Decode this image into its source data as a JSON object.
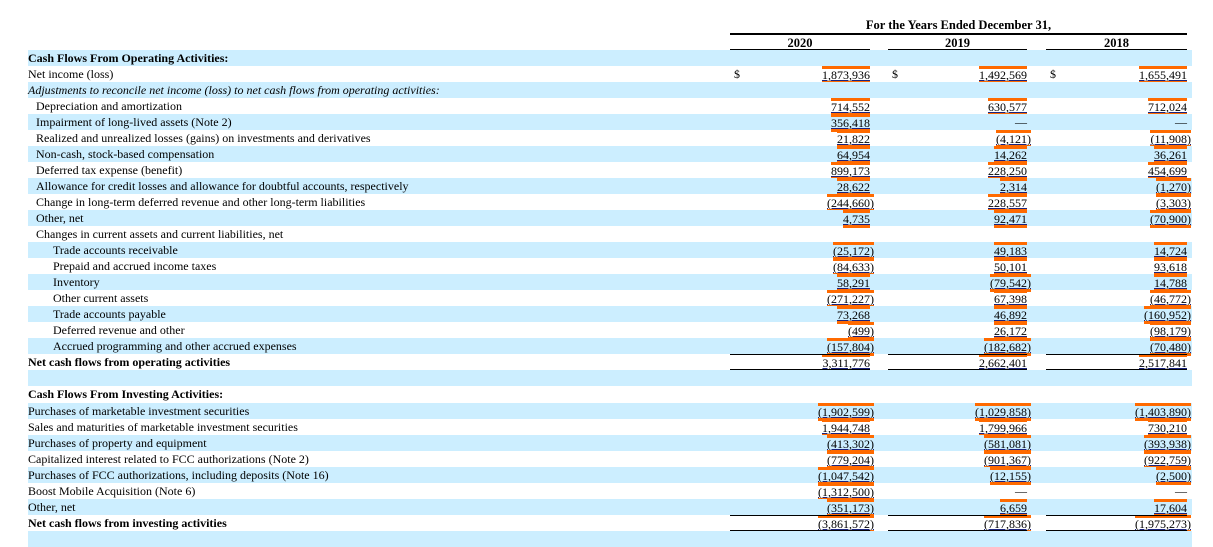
{
  "header": {
    "title": "For the Years Ended December 31,",
    "years": [
      "2020",
      "2019",
      "2018"
    ]
  },
  "colors": {
    "band": "#cceeff",
    "highlight": "#ff6a00"
  },
  "rows": [
    {
      "label": "Cash Flows From Operating Activities:",
      "style": "bold",
      "indent": 0,
      "values": null
    },
    {
      "label": "Net income (loss)",
      "style": "normal",
      "indent": 0,
      "dollar": "$",
      "values": [
        "1,873,936",
        "1,492,569",
        "1,655,491"
      ]
    },
    {
      "label": "Adjustments to reconcile net income (loss) to net cash flows from operating activities:",
      "style": "italic",
      "indent": 0,
      "values": null
    },
    {
      "label": "Depreciation and amortization",
      "style": "normal",
      "indent": 1,
      "values": [
        "714,552",
        "630,577",
        "712,024"
      ]
    },
    {
      "label": "Impairment of long-lived assets (Note 2)",
      "style": "normal",
      "indent": 1,
      "values": [
        "356,418",
        "—",
        "—"
      ]
    },
    {
      "label": "Realized and unrealized losses (gains) on investments and derivatives",
      "style": "normal",
      "indent": 1,
      "values": [
        "21,822",
        "(4,121)",
        "(11,908)"
      ]
    },
    {
      "label": "Non-cash, stock-based compensation",
      "style": "normal",
      "indent": 1,
      "values": [
        "64,954",
        "14,262",
        "36,261"
      ]
    },
    {
      "label": "Deferred tax expense (benefit)",
      "style": "normal",
      "indent": 1,
      "values": [
        "899,173",
        "228,250",
        "454,699"
      ]
    },
    {
      "label": "Allowance for credit losses and allowance for doubtful accounts, respectively",
      "style": "normal",
      "indent": 1,
      "values": [
        "28,622",
        "2,314",
        "(1,270)"
      ]
    },
    {
      "label": "Change in long-term deferred revenue and other long-term liabilities",
      "style": "normal",
      "indent": 1,
      "values": [
        "(244,660)",
        "228,557",
        "(3,303)"
      ]
    },
    {
      "label": "Other, net",
      "style": "normal",
      "indent": 1,
      "values": [
        "4,735",
        "92,471",
        "(70,900)"
      ]
    },
    {
      "label": "Changes in current assets and current liabilities, net",
      "style": "normal",
      "indent": 1,
      "values": null
    },
    {
      "label": "Trade accounts receivable",
      "style": "normal",
      "indent": 2,
      "values": [
        "(25,172)",
        "49,183",
        "14,724"
      ]
    },
    {
      "label": "Prepaid and accrued income taxes",
      "style": "normal",
      "indent": 2,
      "values": [
        "(84,633)",
        "50,101",
        "93,618"
      ]
    },
    {
      "label": "Inventory",
      "style": "normal",
      "indent": 2,
      "values": [
        "58,291",
        "(79,542)",
        "14,788"
      ]
    },
    {
      "label": "Other current assets",
      "style": "normal",
      "indent": 2,
      "values": [
        "(271,227)",
        "67,398",
        "(46,772)"
      ]
    },
    {
      "label": "Trade accounts payable",
      "style": "normal",
      "indent": 2,
      "values": [
        "73,268",
        "46,892",
        "(160,952)"
      ]
    },
    {
      "label": "Deferred revenue and other",
      "style": "normal",
      "indent": 2,
      "values": [
        "(499)",
        "26,172",
        "(98,179)"
      ]
    },
    {
      "label": "Accrued programming and other accrued expenses",
      "style": "normal",
      "indent": 2,
      "values": [
        "(157,804)",
        "(182,682)",
        "(70,480)"
      ]
    },
    {
      "label": "Net cash flows from operating activities",
      "style": "bold",
      "indent": 0,
      "total": true,
      "values": [
        "3,311,776",
        "2,662,401",
        "2,517,841"
      ]
    },
    {
      "label": "",
      "style": "normal",
      "indent": 0,
      "values": null
    },
    {
      "label": "Cash Flows From Investing Activities:",
      "style": "bold",
      "indent": 0,
      "values": null
    },
    {
      "label": "Purchases of marketable investment securities",
      "style": "normal",
      "indent": 0,
      "values": [
        "(1,902,599)",
        "(1,029,858)",
        "(1,403,890)"
      ]
    },
    {
      "label": "Sales and maturities of marketable investment securities",
      "style": "normal",
      "indent": 0,
      "values": [
        "1,944,748",
        "1,799,966",
        "730,210"
      ]
    },
    {
      "label": "Purchases of property and equipment",
      "style": "normal",
      "indent": 0,
      "values": [
        "(413,302)",
        "(581,081)",
        "(393,938)"
      ]
    },
    {
      "label": "Capitalized interest related to FCC authorizations (Note 2)",
      "style": "normal",
      "indent": 0,
      "values": [
        "(779,204)",
        "(901,367)",
        "(922,759)"
      ]
    },
    {
      "label": "Purchases of FCC authorizations, including deposits (Note 16)",
      "style": "normal",
      "indent": 0,
      "values": [
        "(1,047,542)",
        "(12,155)",
        "(2,500)"
      ]
    },
    {
      "label": "Boost Mobile Acquisition (Note 6)",
      "style": "normal",
      "indent": 0,
      "values": [
        "(1,312,500)",
        "—",
        "—"
      ]
    },
    {
      "label": "Other, net",
      "style": "normal",
      "indent": 0,
      "values": [
        "(351,173)",
        "6,659",
        "17,604"
      ]
    },
    {
      "label": "Net cash flows from investing activities",
      "style": "bold",
      "indent": 0,
      "total": true,
      "values": [
        "(3,861,572)",
        "(717,836)",
        "(1,975,273)"
      ]
    },
    {
      "label": "",
      "style": "normal",
      "indent": 0,
      "values": null
    }
  ]
}
